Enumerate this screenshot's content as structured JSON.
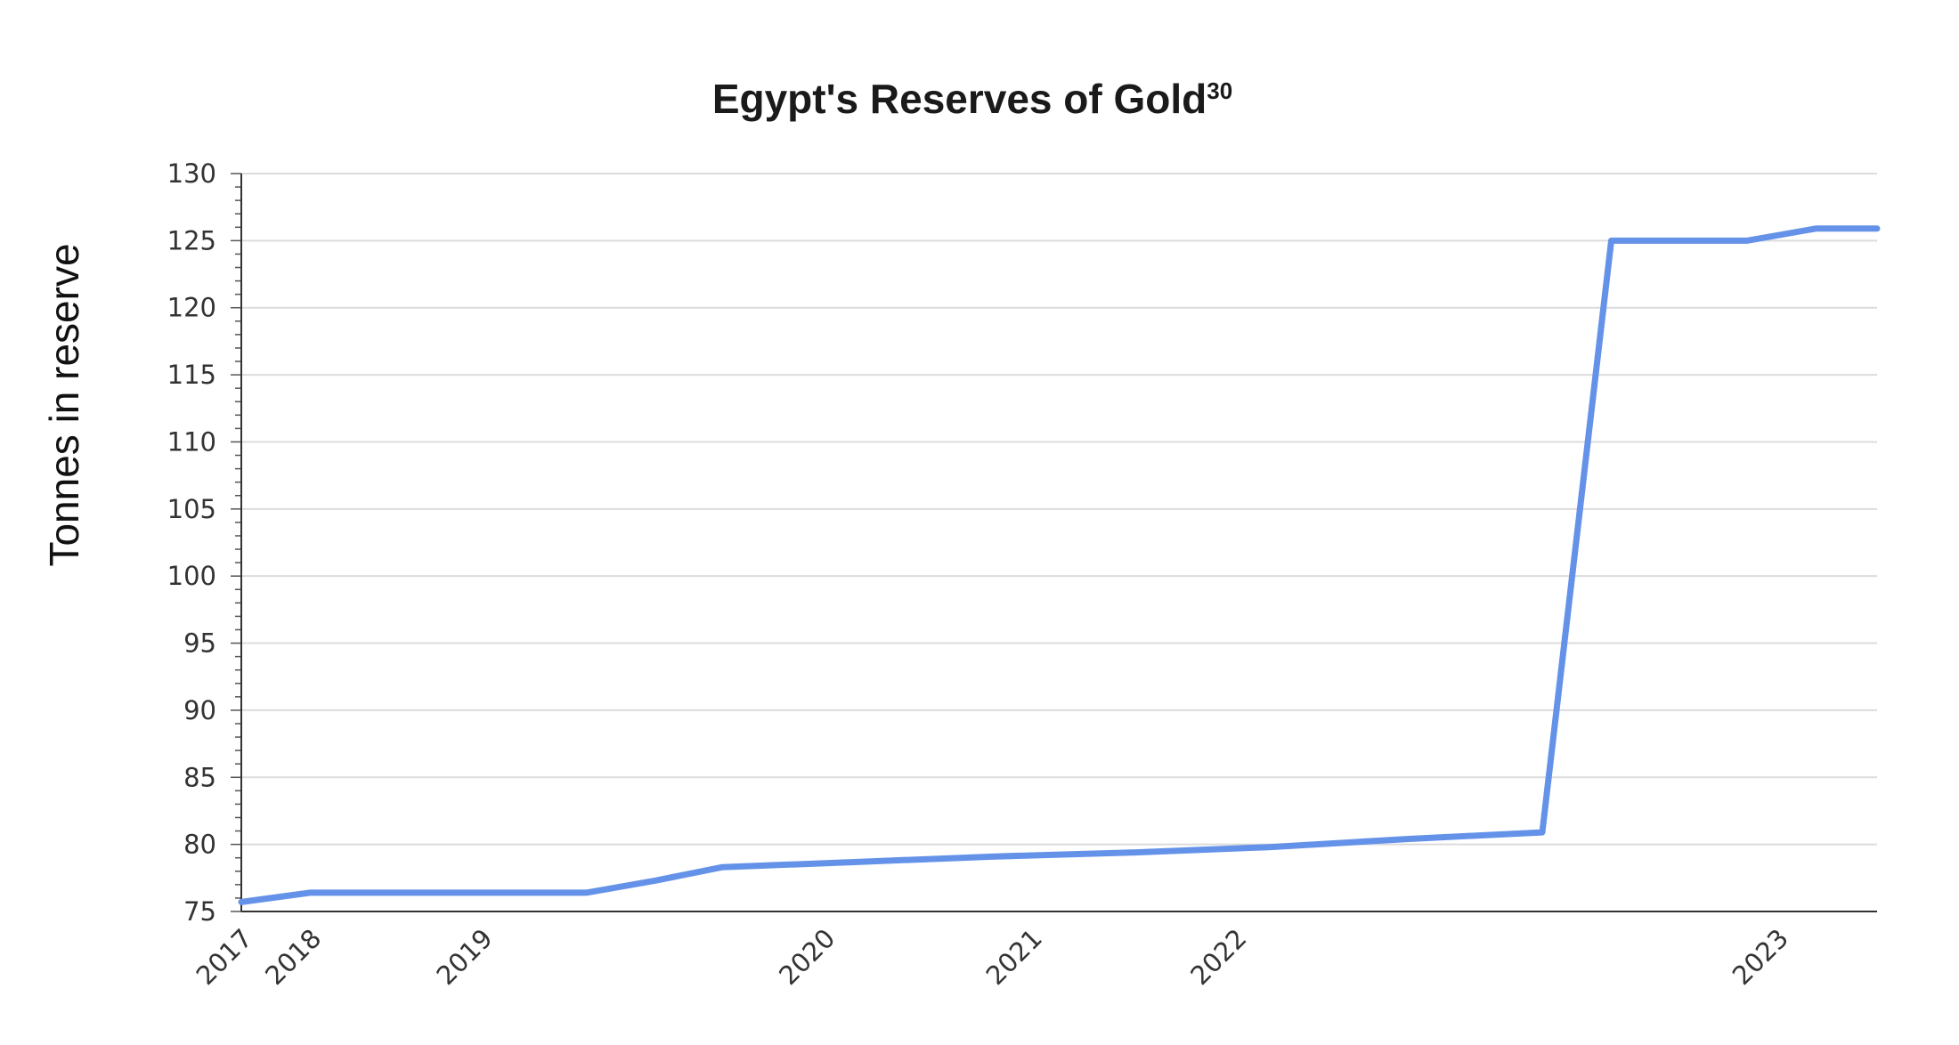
{
  "chart_data": {
    "type": "line",
    "title": "Egypt's Reserves of Gold",
    "title_superscript": "30",
    "xlabel": "",
    "ylabel": "Tonnes in reserve",
    "ylim": [
      75,
      130
    ],
    "yticks": [
      75,
      80,
      85,
      90,
      95,
      100,
      105,
      110,
      115,
      120,
      125,
      130
    ],
    "xlim": [
      2017.0,
      2023.4
    ],
    "xticks": [
      {
        "label": "2017",
        "x": 2017.0
      },
      {
        "label": "2018",
        "x": 2017.27
      },
      {
        "label": "2019",
        "x": 2017.94
      },
      {
        "label": "2020",
        "x": 2019.28
      },
      {
        "label": "2021",
        "x": 2020.09
      },
      {
        "label": "2022",
        "x": 2020.89
      },
      {
        "label": "2023",
        "x": 2023.01
      }
    ],
    "grid": true,
    "legend": "none",
    "color": "#6492e8",
    "series": [
      {
        "name": "",
        "x": [
          2017.0,
          2017.27,
          2018.08,
          2018.35,
          2018.62,
          2018.88,
          2019.42,
          2019.95,
          2020.49,
          2021.02,
          2021.56,
          2022.09,
          2022.36,
          2022.62,
          2022.89,
          2023.16,
          2023.4
        ],
        "y": [
          75.7,
          76.4,
          76.4,
          76.4,
          77.3,
          78.3,
          78.7,
          79.1,
          79.4,
          79.8,
          80.4,
          80.9,
          125.0,
          125.0,
          125.0,
          125.9,
          125.9
        ]
      }
    ]
  }
}
